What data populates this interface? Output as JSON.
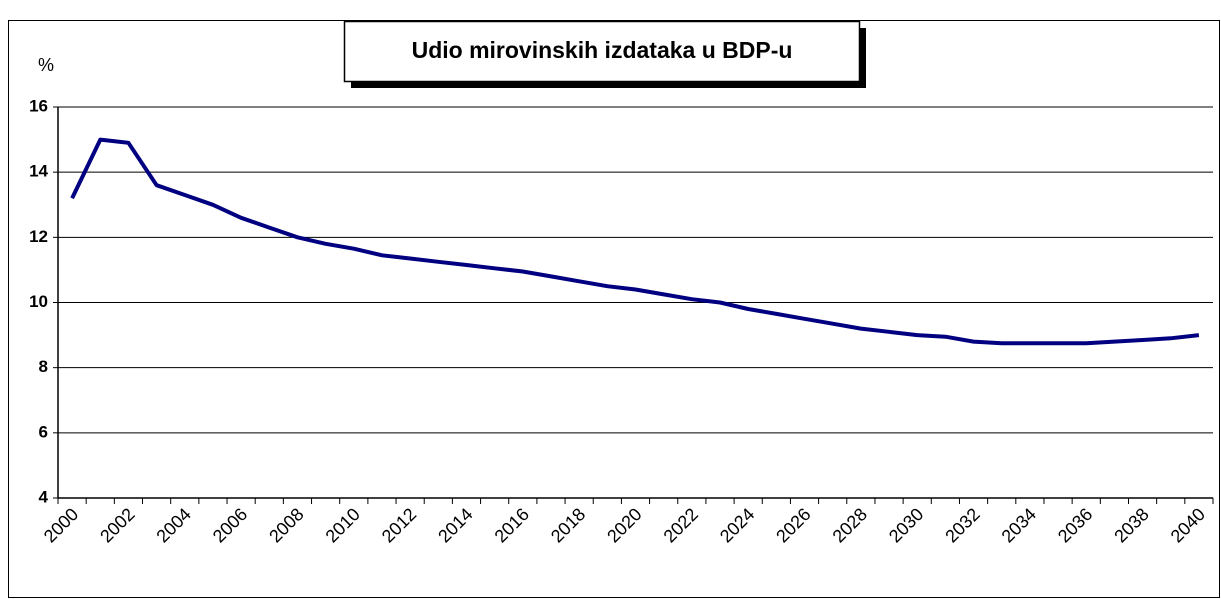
{
  "chart_data": {
    "type": "line",
    "title": "Udio mirovinskih izdataka u BDP-u",
    "y_label": "%",
    "categories": [
      "2000",
      null,
      "2002",
      null,
      "2004",
      null,
      "2006",
      null,
      "2008",
      null,
      "2010",
      null,
      "2012",
      null,
      "2014",
      null,
      "2016",
      null,
      "2018",
      null,
      "2020",
      null,
      "2022",
      null,
      "2024",
      null,
      "2026",
      null,
      "2028",
      null,
      "2030",
      null,
      "2032",
      null,
      "2034",
      null,
      "2036",
      null,
      "2038",
      null,
      "2040"
    ],
    "series": [
      {
        "color": "#000080",
        "values": [
          13.2,
          15.0,
          14.9,
          13.6,
          13.3,
          13.0,
          12.6,
          12.3,
          12.0,
          11.8,
          11.65,
          11.45,
          11.35,
          11.25,
          11.15,
          11.05,
          10.95,
          10.8,
          10.65,
          10.5,
          10.4,
          10.25,
          10.1,
          10.0,
          9.8,
          9.65,
          9.5,
          9.35,
          9.2,
          9.1,
          9.0,
          8.95,
          8.8,
          8.75,
          8.75,
          8.75,
          8.75,
          8.8,
          8.85,
          8.9,
          9.0
        ]
      }
    ],
    "ylim": [
      4,
      16
    ],
    "yticks": [
      4,
      6,
      8,
      10,
      12,
      14,
      16
    ],
    "grid": true
  }
}
